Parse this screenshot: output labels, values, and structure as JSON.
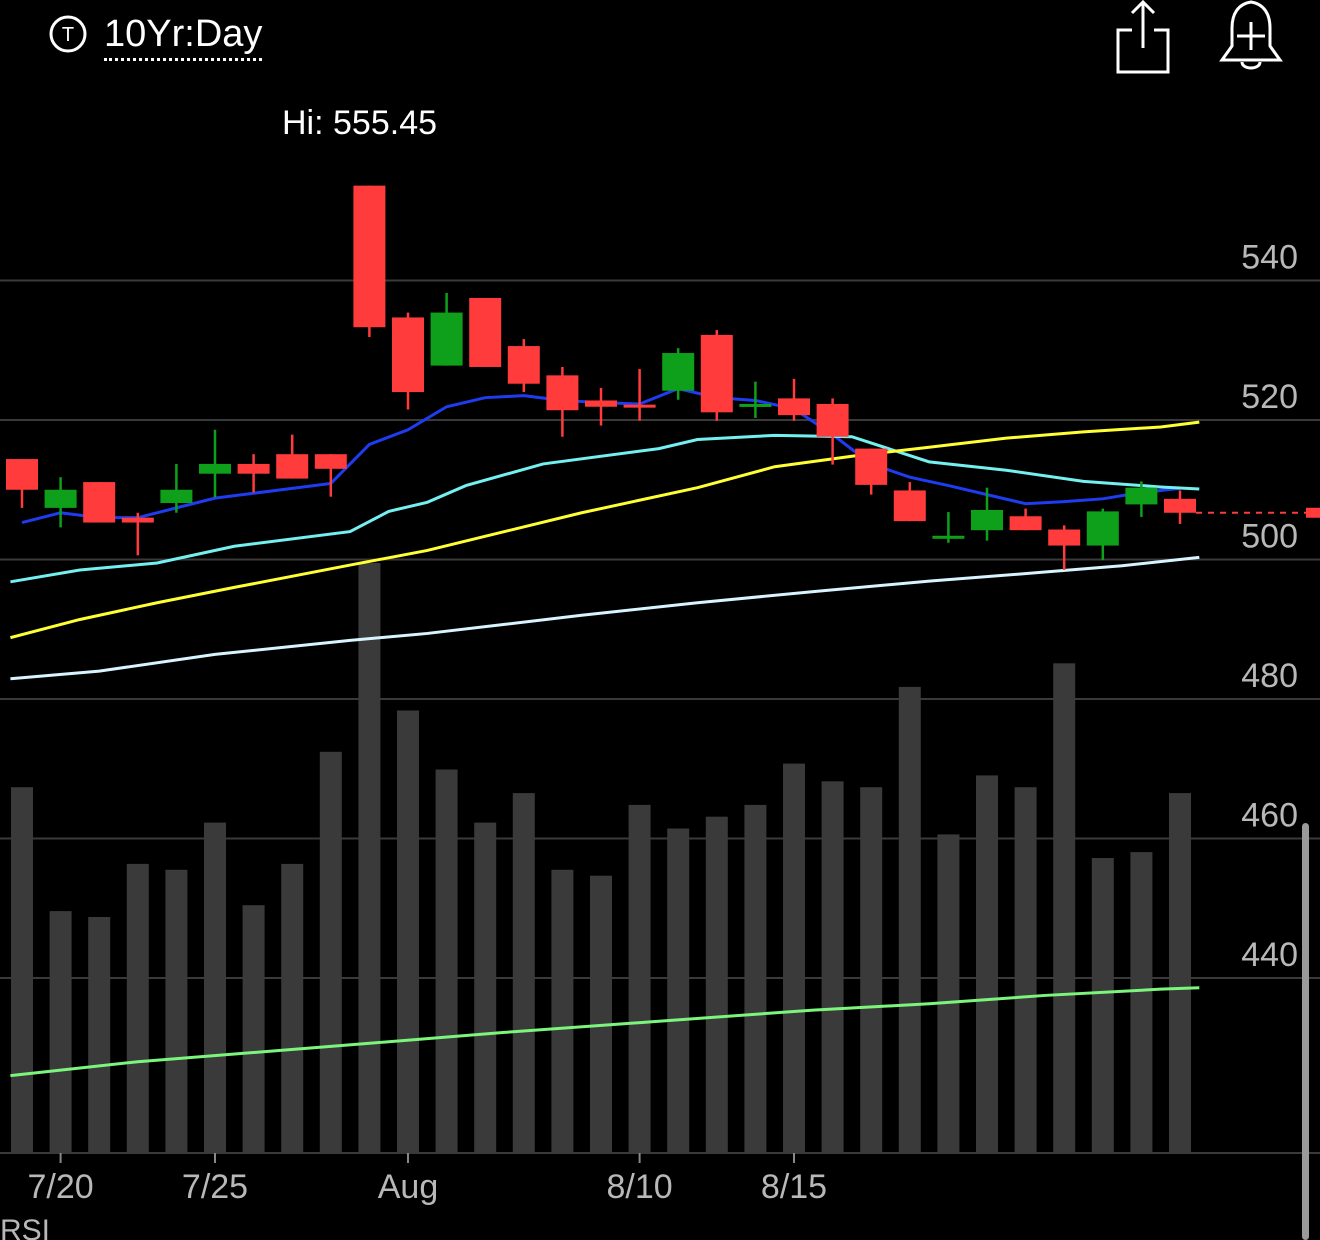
{
  "toolbar": {
    "timeframe": "10Yr:Day",
    "ticker_icon": "T",
    "share_icon": "share-icon",
    "alert_icon": "add-alert-icon"
  },
  "hi_label": {
    "prefix": "Hi:",
    "value": "555.45"
  },
  "colors": {
    "up": "#0ea01a",
    "down": "#ff3b3b",
    "grid": "#3a3a3a",
    "axis_text": "#b8b8b8",
    "volume": "#3a3a3a",
    "ma_blue": "#1e3cf0",
    "ma_cyan": "#74f0f0",
    "ma_yellow": "#ffff33",
    "ma_white": "#d8f4ff",
    "ma_green": "#7cf57c",
    "last_price": "#ff3b3b"
  },
  "chart_data": {
    "type": "candlestick",
    "y_ticks": [
      540,
      520,
      500,
      480,
      460,
      440
    ],
    "ylim": [
      425.3,
      565.5
    ],
    "x_tick_labels": [
      {
        "label": "7/20",
        "index": 1
      },
      {
        "label": "7/25",
        "index": 5
      },
      {
        "label": "Aug",
        "index": 10
      },
      {
        "label": "8/10",
        "index": 16
      },
      {
        "label": "8/15",
        "index": 20
      }
    ],
    "partial_bottom_label": "RSI",
    "hi": 555.45,
    "last_price": 506.7,
    "candles": [
      {
        "o": 514.4,
        "h": 514.4,
        "l": 507.4,
        "c": 510.0
      },
      {
        "o": 507.4,
        "h": 511.8,
        "l": 504.6,
        "c": 510.0
      },
      {
        "o": 511.1,
        "h": 511.1,
        "l": 505.3,
        "c": 505.3
      },
      {
        "o": 506.0,
        "h": 506.7,
        "l": 500.6,
        "c": 505.3
      },
      {
        "o": 508.1,
        "h": 513.7,
        "l": 506.7,
        "c": 510.0
      },
      {
        "o": 512.3,
        "h": 518.6,
        "l": 508.9,
        "c": 513.7
      },
      {
        "o": 513.7,
        "h": 515.1,
        "l": 509.6,
        "c": 512.3
      },
      {
        "o": 515.1,
        "h": 517.9,
        "l": 511.6,
        "c": 511.6
      },
      {
        "o": 515.1,
        "h": 515.1,
        "l": 509.0,
        "c": 513.0
      },
      {
        "o": 553.6,
        "h": 553.6,
        "l": 531.9,
        "c": 533.3
      },
      {
        "o": 534.7,
        "h": 535.4,
        "l": 521.5,
        "c": 524.0
      },
      {
        "o": 527.8,
        "h": 538.2,
        "l": 527.8,
        "c": 535.4
      },
      {
        "o": 537.5,
        "h": 537.5,
        "l": 527.6,
        "c": 527.6
      },
      {
        "o": 530.6,
        "h": 531.6,
        "l": 524.0,
        "c": 525.2
      },
      {
        "o": 526.4,
        "h": 527.6,
        "l": 517.6,
        "c": 521.4
      },
      {
        "o": 522.8,
        "h": 524.6,
        "l": 519.2,
        "c": 521.9
      },
      {
        "o": 522.2,
        "h": 527.3,
        "l": 519.9,
        "c": 521.9
      },
      {
        "o": 524.2,
        "h": 530.3,
        "l": 522.9,
        "c": 529.6
      },
      {
        "o": 532.2,
        "h": 532.9,
        "l": 519.9,
        "c": 521.1
      },
      {
        "o": 522.3,
        "h": 525.5,
        "l": 520.3,
        "c": 522.3
      },
      {
        "o": 523.1,
        "h": 525.9,
        "l": 519.9,
        "c": 520.7
      },
      {
        "o": 522.3,
        "h": 523.1,
        "l": 513.6,
        "c": 517.6
      },
      {
        "o": 515.9,
        "h": 515.9,
        "l": 509.3,
        "c": 510.7
      },
      {
        "o": 509.9,
        "h": 511.1,
        "l": 505.5,
        "c": 505.5
      },
      {
        "o": 503.4,
        "h": 506.8,
        "l": 502.4,
        "c": 503.4
      },
      {
        "o": 504.2,
        "h": 510.3,
        "l": 502.7,
        "c": 507.1
      },
      {
        "o": 506.2,
        "h": 507.3,
        "l": 504.2,
        "c": 504.2
      },
      {
        "o": 504.3,
        "h": 504.9,
        "l": 498.5,
        "c": 502.0
      },
      {
        "o": 502.0,
        "h": 507.3,
        "l": 499.9,
        "c": 506.9
      },
      {
        "o": 507.9,
        "h": 511.2,
        "l": 506.1,
        "c": 510.3
      },
      {
        "o": 508.7,
        "h": 509.9,
        "l": 505.1,
        "c": 506.7
      }
    ],
    "volume": [
      0.62,
      0.41,
      0.4,
      0.49,
      0.48,
      0.56,
      0.42,
      0.49,
      0.68,
      1.0,
      0.75,
      0.65,
      0.56,
      0.61,
      0.48,
      0.47,
      0.59,
      0.55,
      0.57,
      0.59,
      0.66,
      0.63,
      0.62,
      0.79,
      0.54,
      0.64,
      0.62,
      0.83,
      0.5,
      0.51,
      0.61
    ],
    "moving_averages": [
      {
        "color_key": "ma_blue",
        "values": [
          505.3,
          506.7,
          506.0,
          506.0,
          507.4,
          508.8,
          509.5,
          510.2,
          510.9,
          516.5,
          518.6,
          521.9,
          523.2,
          523.5,
          522.8,
          522.5,
          522.3,
          524.5,
          523.2,
          522.8,
          521.6,
          517.9,
          513.7,
          511.8,
          510.6,
          509.3,
          508.0,
          508.3,
          508.7,
          509.6,
          510.2
        ]
      },
      {
        "color_key": "ma_cyan",
        "values": null,
        "points": [
          [
            -0.3,
            496.8
          ],
          [
            1.5,
            498.5
          ],
          [
            3.5,
            499.5
          ],
          [
            5.5,
            501.9
          ],
          [
            8.5,
            504.0
          ],
          [
            9.5,
            506.9
          ],
          [
            10.5,
            508.2
          ],
          [
            11.5,
            510.6
          ],
          [
            13.5,
            513.7
          ],
          [
            16.5,
            515.9
          ],
          [
            17.5,
            517.2
          ],
          [
            19.5,
            517.8
          ],
          [
            21.5,
            517.6
          ],
          [
            23.5,
            514.0
          ],
          [
            25.5,
            512.8
          ],
          [
            27.5,
            511.2
          ],
          [
            29.5,
            510.4
          ],
          [
            30.5,
            510.1
          ]
        ]
      },
      {
        "color_key": "ma_yellow",
        "points": [
          [
            -0.3,
            488.8
          ],
          [
            1.5,
            491.4
          ],
          [
            3.5,
            493.8
          ],
          [
            5.5,
            496.0
          ],
          [
            8.5,
            499.2
          ],
          [
            10.5,
            501.3
          ],
          [
            12.5,
            504.0
          ],
          [
            14.5,
            506.7
          ],
          [
            17.5,
            510.3
          ],
          [
            19.5,
            513.3
          ],
          [
            21.5,
            514.8
          ],
          [
            23.5,
            516.1
          ],
          [
            25.5,
            517.4
          ],
          [
            27.5,
            518.3
          ],
          [
            29.5,
            519.0
          ],
          [
            30.5,
            519.7
          ]
        ],
        "note": "price-scale"
      },
      {
        "color_key": "ma_white",
        "points": [
          [
            -0.3,
            482.9
          ],
          [
            2.0,
            484.0
          ],
          [
            5.0,
            486.4
          ],
          [
            8.5,
            488.4
          ],
          [
            10.5,
            489.4
          ],
          [
            12.5,
            490.7
          ],
          [
            14.5,
            492.0
          ],
          [
            17.5,
            493.8
          ],
          [
            20.5,
            495.4
          ],
          [
            23.5,
            496.9
          ],
          [
            26.5,
            498.2
          ],
          [
            28.5,
            499.1
          ],
          [
            30.5,
            500.3
          ]
        ]
      },
      {
        "color_key": "ma_green",
        "points": [
          [
            -0.3,
            426.0
          ],
          [
            3.0,
            428.0
          ],
          [
            8.0,
            430.2
          ],
          [
            12.5,
            432.2
          ],
          [
            16.5,
            433.8
          ],
          [
            20.5,
            435.4
          ],
          [
            23.5,
            436.3
          ],
          [
            26.5,
            437.5
          ],
          [
            29.5,
            438.4
          ],
          [
            30.5,
            438.6
          ]
        ]
      }
    ]
  }
}
